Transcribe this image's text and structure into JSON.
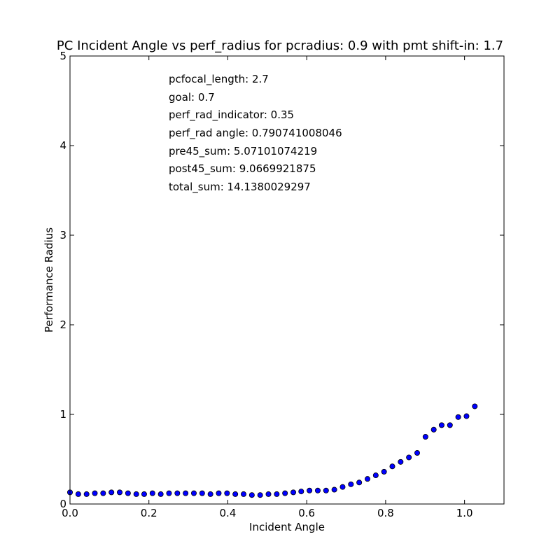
{
  "chart_data": {
    "type": "scatter",
    "title": "PC Incident Angle vs perf_radius for pcradius: 0.9 with pmt shift-in: 1.7",
    "xlabel": "Incident Angle",
    "ylabel": "Performance Radius",
    "xlim": [
      0.0,
      1.1
    ],
    "ylim": [
      0,
      5
    ],
    "x_ticks": [
      "0.0",
      "0.2",
      "0.4",
      "0.6",
      "0.8",
      "1.0"
    ],
    "x_tick_values": [
      0.0,
      0.2,
      0.4,
      0.6,
      0.8,
      1.0
    ],
    "y_ticks": [
      "0",
      "1",
      "2",
      "3",
      "4",
      "5"
    ],
    "y_tick_values": [
      0,
      1,
      2,
      3,
      4,
      5
    ],
    "grid": false,
    "marker_color": "#0000ff",
    "annotations": [
      "pcfocal_length: 2.7",
      "goal: 0.7",
      "perf_rad_indicator: 0.35",
      "perf_rad angle: 0.790741008046",
      "pre45_sum: 5.07101074219",
      "post45_sum: 9.0669921875",
      "total_sum: 14.1380029297"
    ],
    "points": [
      {
        "x": 0.0,
        "y": 0.13
      },
      {
        "x": 0.021,
        "y": 0.11
      },
      {
        "x": 0.042,
        "y": 0.11
      },
      {
        "x": 0.063,
        "y": 0.12
      },
      {
        "x": 0.084,
        "y": 0.12
      },
      {
        "x": 0.105,
        "y": 0.13
      },
      {
        "x": 0.126,
        "y": 0.13
      },
      {
        "x": 0.147,
        "y": 0.12
      },
      {
        "x": 0.168,
        "y": 0.11
      },
      {
        "x": 0.188,
        "y": 0.11
      },
      {
        "x": 0.209,
        "y": 0.12
      },
      {
        "x": 0.23,
        "y": 0.11
      },
      {
        "x": 0.251,
        "y": 0.12
      },
      {
        "x": 0.272,
        "y": 0.12
      },
      {
        "x": 0.293,
        "y": 0.12
      },
      {
        "x": 0.314,
        "y": 0.12
      },
      {
        "x": 0.335,
        "y": 0.12
      },
      {
        "x": 0.356,
        "y": 0.11
      },
      {
        "x": 0.377,
        "y": 0.12
      },
      {
        "x": 0.398,
        "y": 0.12
      },
      {
        "x": 0.419,
        "y": 0.11
      },
      {
        "x": 0.44,
        "y": 0.11
      },
      {
        "x": 0.461,
        "y": 0.1
      },
      {
        "x": 0.482,
        "y": 0.1
      },
      {
        "x": 0.503,
        "y": 0.11
      },
      {
        "x": 0.524,
        "y": 0.11
      },
      {
        "x": 0.545,
        "y": 0.12
      },
      {
        "x": 0.566,
        "y": 0.13
      },
      {
        "x": 0.586,
        "y": 0.14
      },
      {
        "x": 0.607,
        "y": 0.15
      },
      {
        "x": 0.628,
        "y": 0.15
      },
      {
        "x": 0.649,
        "y": 0.15
      },
      {
        "x": 0.67,
        "y": 0.16
      },
      {
        "x": 0.691,
        "y": 0.19
      },
      {
        "x": 0.712,
        "y": 0.22
      },
      {
        "x": 0.733,
        "y": 0.24
      },
      {
        "x": 0.754,
        "y": 0.28
      },
      {
        "x": 0.775,
        "y": 0.32
      },
      {
        "x": 0.796,
        "y": 0.36
      },
      {
        "x": 0.817,
        "y": 0.42
      },
      {
        "x": 0.838,
        "y": 0.47
      },
      {
        "x": 0.859,
        "y": 0.52
      },
      {
        "x": 0.88,
        "y": 0.57
      },
      {
        "x": 0.901,
        "y": 0.75
      },
      {
        "x": 0.922,
        "y": 0.83
      },
      {
        "x": 0.942,
        "y": 0.88
      },
      {
        "x": 0.963,
        "y": 0.88
      },
      {
        "x": 0.984,
        "y": 0.97
      },
      {
        "x": 1.005,
        "y": 0.98
      },
      {
        "x": 1.026,
        "y": 1.09
      }
    ]
  }
}
